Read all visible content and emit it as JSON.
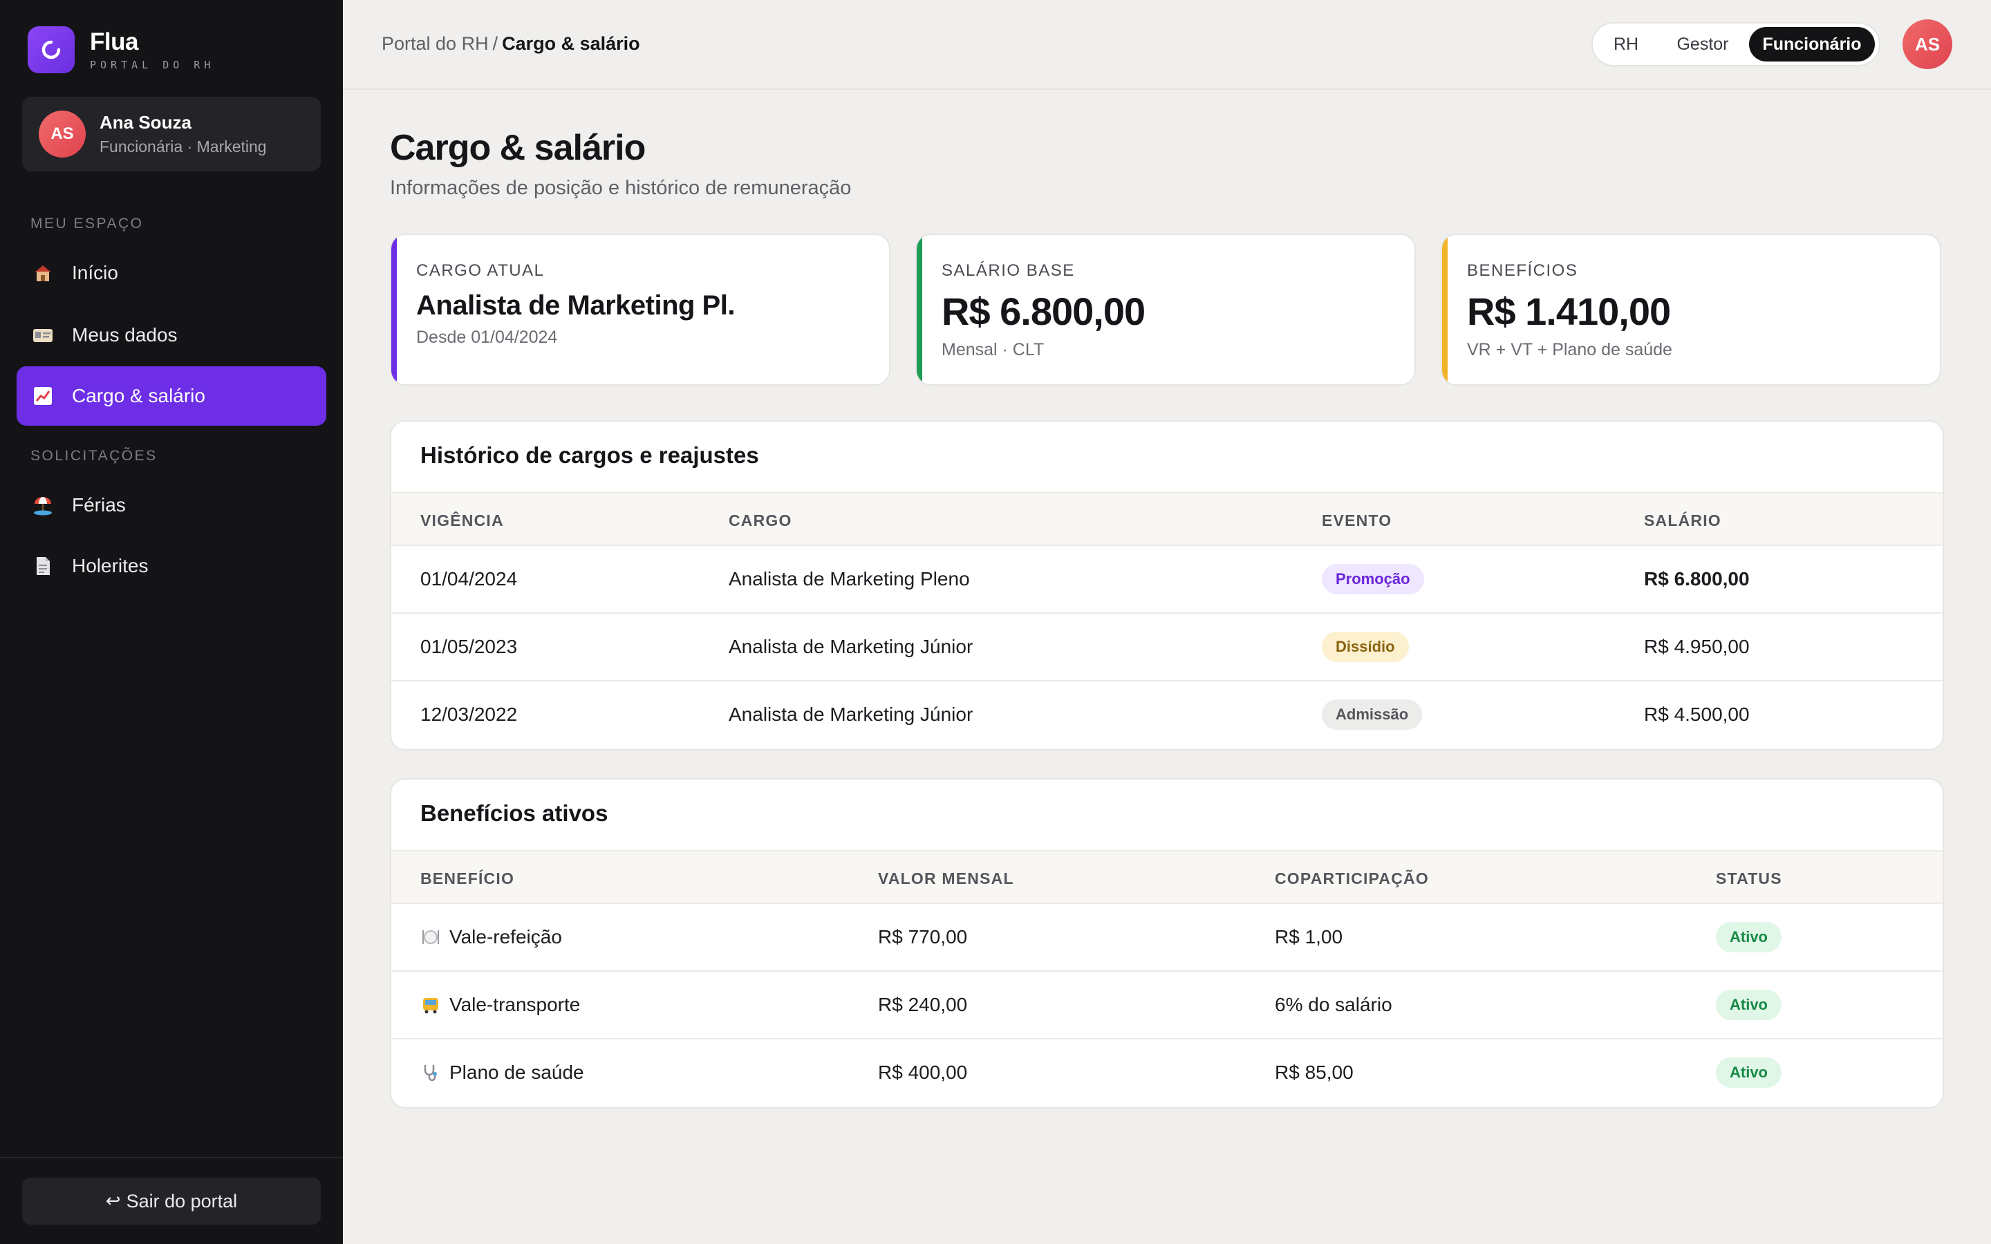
{
  "brand": {
    "name": "Flua",
    "subtitle": "PORTAL DO RH"
  },
  "user": {
    "initials": "AS",
    "name": "Ana Souza",
    "role": "Funcionária · Marketing"
  },
  "sidebar": {
    "section1": "MEU ESPAÇO",
    "section2": "SOLICITAÇÕES",
    "items": [
      {
        "label": "Início",
        "icon": "house-icon"
      },
      {
        "label": "Meus dados",
        "icon": "id-card-icon"
      },
      {
        "label": "Cargo & salário",
        "icon": "chart-up-icon",
        "active": true
      },
      {
        "label": "Férias",
        "icon": "beach-icon"
      },
      {
        "label": "Holerites",
        "icon": "document-icon"
      }
    ],
    "logout": "Sair do portal",
    "logout_arrow": "↩"
  },
  "topbar": {
    "breadcrumb_root": "Portal do RH",
    "breadcrumb_sep": "/",
    "breadcrumb_current": "Cargo & salário",
    "roles": [
      "RH",
      "Gestor",
      "Funcionário"
    ],
    "selected_role": "Funcionário",
    "avatar_initials": "AS"
  },
  "page": {
    "title": "Cargo & salário",
    "subtitle": "Informações de posição e histórico de remuneração"
  },
  "stats": [
    {
      "label": "CARGO ATUAL",
      "value": "Analista de Marketing Pl.",
      "note": "Desde 01/04/2024",
      "color": "#6d2ee6"
    },
    {
      "label": "SALÁRIO BASE",
      "value": "R$ 6.800,00",
      "note": "Mensal · CLT",
      "color": "#1f9d55"
    },
    {
      "label": "BENEFÍCIOS",
      "value": "R$ 1.410,00",
      "note": "VR + VT + Plano de saúde",
      "color": "#f0b429"
    }
  ],
  "history": {
    "title": "Histórico de cargos e reajustes",
    "columns": [
      "VIGÊNCIA",
      "CARGO",
      "EVENTO",
      "SALÁRIO"
    ],
    "rows": [
      {
        "date": "01/04/2024",
        "role": "Analista de Marketing Pleno",
        "event": "Promoção",
        "salary": "R$ 6.800,00"
      },
      {
        "date": "01/05/2023",
        "role": "Analista de Marketing Júnior",
        "event": "Dissídio",
        "salary": "R$ 4.950,00"
      },
      {
        "date": "12/03/2022",
        "role": "Analista de Marketing Júnior",
        "event": "Admissão",
        "salary": "R$ 4.500,00"
      }
    ]
  },
  "benefits": {
    "title": "Benefícios ativos",
    "columns": [
      "BENEFÍCIO",
      "VALOR MENSAL",
      "COPARTICIPAÇÃO",
      "STATUS"
    ],
    "rows": [
      {
        "name": "Vale-refeição",
        "icon": "plate-cutlery-icon",
        "value": "R$ 770,00",
        "copay": "R$ 1,00",
        "status": "Ativo"
      },
      {
        "name": "Vale-transporte",
        "icon": "bus-icon",
        "value": "R$ 240,00",
        "copay": "6% do salário",
        "status": "Ativo"
      },
      {
        "name": "Plano de saúde",
        "icon": "stethoscope-icon",
        "value": "R$ 400,00",
        "copay": "R$ 85,00",
        "status": "Ativo"
      }
    ]
  }
}
